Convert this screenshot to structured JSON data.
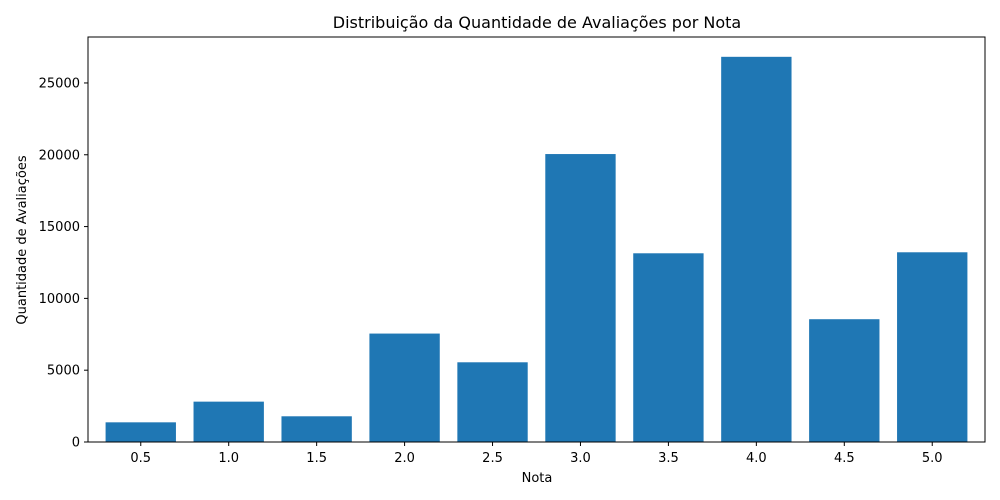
{
  "chart_data": {
    "type": "bar",
    "title": "Distribuição da Quantidade de Avaliações por Nota",
    "xlabel": "Nota",
    "ylabel": "Quantidade de Avaliações",
    "categories": [
      "0.5",
      "1.0",
      "1.5",
      "2.0",
      "2.5",
      "3.0",
      "3.5",
      "4.0",
      "4.5",
      "5.0"
    ],
    "values": [
      1370,
      2810,
      1790,
      7550,
      5550,
      20050,
      13140,
      26820,
      8550,
      13210
    ],
    "ylim": [
      0,
      28200
    ],
    "yticks": [
      0,
      5000,
      10000,
      15000,
      20000,
      25000
    ],
    "bar_color": "#1f77b4",
    "grid": false
  }
}
